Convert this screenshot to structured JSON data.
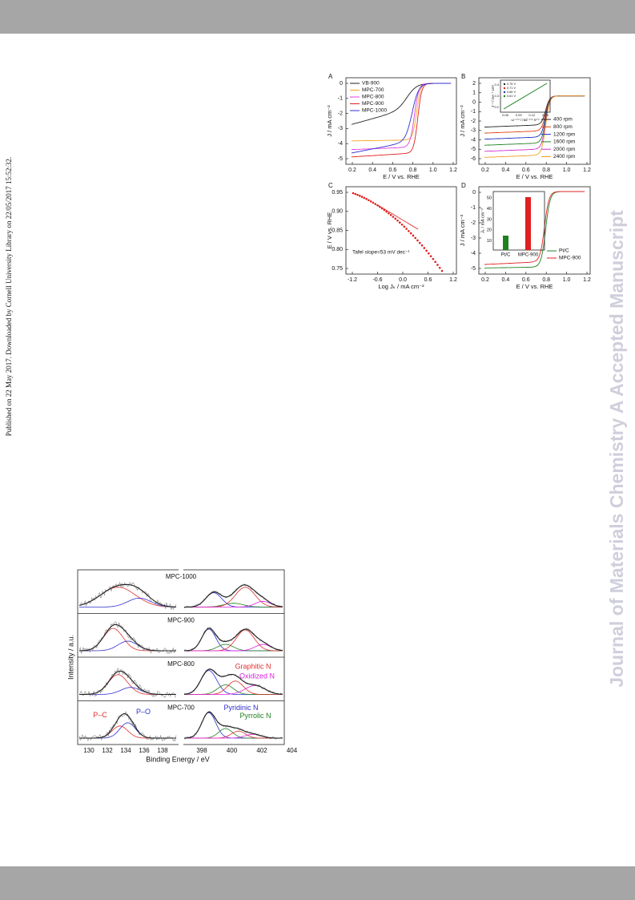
{
  "side_note": "Published on 22 May 2017. Downloaded by Cornell University Library on 22/05/2017 15:52:32.",
  "watermark": "Journal of Materials Chemistry A Accepted Manuscript",
  "figure_1": {
    "panels": [
      {
        "label": "A",
        "y_label": "J / mA cm⁻²",
        "x_label": "E / V vs. RHE",
        "x_ticks": [
          "0.2",
          "0.4",
          "0.6",
          "0.8",
          "1.0",
          "1.2"
        ],
        "y_ticks": [
          "0",
          "-1",
          "-2",
          "-3",
          "-4",
          "-5"
        ],
        "legend": [
          {
            "name": "VB-900",
            "color": "#222222"
          },
          {
            "name": "MPC-700",
            "color": "#f5a623"
          },
          {
            "name": "MPC-800",
            "color": "#e040e0"
          },
          {
            "name": "MPC-900",
            "color": "#e02020"
          },
          {
            "name": "MPC-1000",
            "color": "#3030d0"
          }
        ]
      },
      {
        "label": "B",
        "y_label": "J / mA cm⁻²",
        "x_label": "E / V vs. RHE",
        "x_ticks": [
          "0.2",
          "0.4",
          "0.6",
          "0.8",
          "1.0",
          "1.2"
        ],
        "y_ticks": [
          "2",
          "1",
          "0",
          "-1",
          "-2",
          "-3",
          "-4",
          "-5",
          "-6"
        ],
        "legend": [
          {
            "name": "400 rpm",
            "color": "#222222"
          },
          {
            "name": "800 rpm",
            "color": "#e04010"
          },
          {
            "name": "1200 rpm",
            "color": "#2030c0"
          },
          {
            "name": "1600 rpm",
            "color": "#208020"
          },
          {
            "name": "2000 rpm",
            "color": "#d030d0"
          },
          {
            "name": "2400 rpm",
            "color": "#f0a020"
          }
        ],
        "inset": {
          "y_label": "J⁻¹ / mA⁻¹ cm²",
          "x_label": "ω⁻¹ᐟ² / rad⁻¹ᐟ² s¹ᐟ²",
          "x_ticks": [
            "0.06",
            "0.09",
            "0.12",
            "0.15"
          ],
          "y_ticks": [
            "0.4",
            "0.3",
            "0.2"
          ],
          "legend": [
            {
              "name": "0.75 V",
              "color": "#222222"
            },
            {
              "name": "0.71 V",
              "color": "#e02020"
            },
            {
              "name": "0.66 V",
              "color": "#2030c0"
            },
            {
              "name": "0.61 V",
              "color": "#208020"
            }
          ]
        }
      },
      {
        "label": "C",
        "y_label": "E / V vs. RHE",
        "x_label": "Log Jₖ / mA cm⁻²",
        "x_ticks": [
          "-1.2",
          "-0.6",
          "0.0",
          "0.6",
          "1.2"
        ],
        "y_ticks": [
          "0.95",
          "0.90",
          "0.85",
          "0.80",
          "0.75"
        ],
        "annotation": "Tafel slope=53 mV dec⁻¹",
        "color": "#e02020"
      },
      {
        "label": "D",
        "y_label": "J / mA cm⁻²",
        "x_label": "E / V vs. RHE",
        "x_ticks": [
          "0.2",
          "0.4",
          "0.6",
          "0.8",
          "1.0",
          "1.2"
        ],
        "y_ticks": [
          "0",
          "-1",
          "-2",
          "-3",
          "-4",
          "-5"
        ],
        "legend": [
          {
            "name": "Pt/C",
            "color": "#208020"
          },
          {
            "name": "MPC-900",
            "color": "#e02020"
          }
        ],
        "inset": {
          "y_label": "Jₖ / mA cm⁻²",
          "y_ticks": [
            "50",
            "40",
            "30",
            "20",
            "10"
          ],
          "categories": [
            "Pt/C",
            "MPC-900"
          ]
        }
      }
    ]
  },
  "figure_2": {
    "samples": [
      "MPC-1000",
      "MPC-900",
      "MPC-800",
      "MPC-700"
    ],
    "y_label": "Intensity / a.u.",
    "x_label": "Binding Energy / eV",
    "x_ticks_left": [
      "130",
      "132",
      "134",
      "136",
      "138"
    ],
    "x_ticks_right": [
      "398",
      "400",
      "402",
      "404"
    ],
    "peaks": [
      {
        "name": "P–C",
        "color": "#e03030"
      },
      {
        "name": "P–O",
        "color": "#3030d0"
      },
      {
        "name": "Pyridinic N",
        "color": "#3030d0"
      },
      {
        "name": "Pyrrolic N",
        "color": "#208020"
      },
      {
        "name": "Graphitic N",
        "color": "#e03030"
      },
      {
        "name": "Oxidized N",
        "color": "#e020e0"
      }
    ]
  }
}
